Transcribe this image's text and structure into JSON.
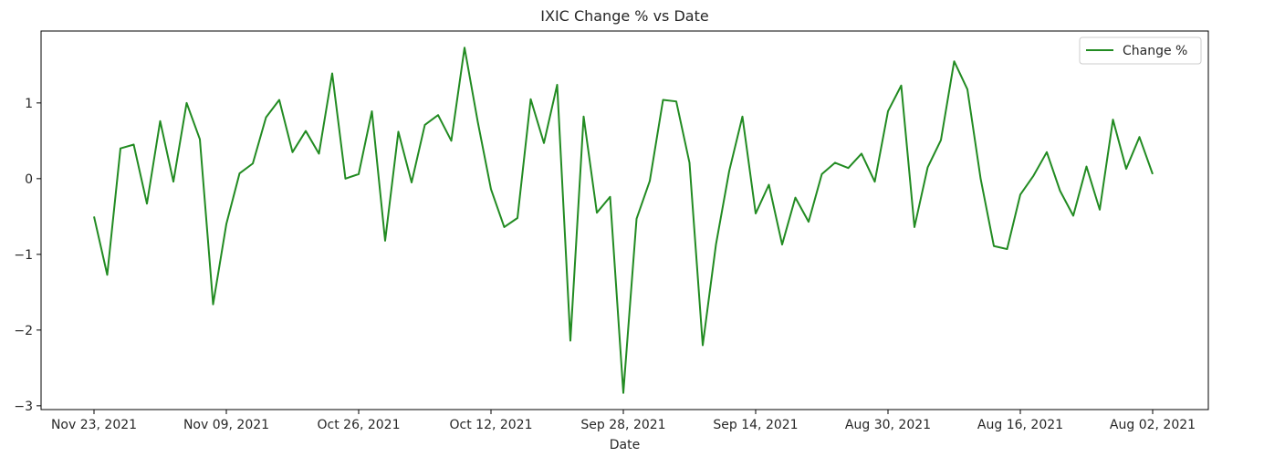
{
  "chart_data": {
    "type": "line",
    "title": "IXIC Change % vs Date",
    "xlabel": "Date",
    "ylabel": "",
    "x_order": "descending-date",
    "xtick_labels": [
      "Nov 23, 2021",
      "Nov 09, 2021",
      "Oct 26, 2021",
      "Oct 12, 2021",
      "Sep 28, 2021",
      "Sep 14, 2021",
      "Aug 30, 2021",
      "Aug 16, 2021",
      "Aug 02, 2021"
    ],
    "yticks": [
      1,
      0,
      -1,
      -2,
      -3
    ],
    "ytick_labels": [
      "1",
      "0",
      "−1",
      "−2",
      "−3"
    ],
    "ylim": [
      -3.05,
      1.95
    ],
    "grid": false,
    "legend_position": "top-right",
    "series": [
      {
        "name": "Change %",
        "color": "#228B22",
        "values": [
          -0.5,
          -1.27,
          0.4,
          0.45,
          -0.33,
          0.76,
          -0.04,
          1.0,
          0.52,
          -1.66,
          -0.6,
          0.07,
          0.2,
          0.81,
          1.04,
          0.35,
          0.63,
          0.33,
          1.39,
          0.0,
          0.06,
          0.89,
          -0.82,
          0.62,
          -0.05,
          0.71,
          0.84,
          0.5,
          1.73,
          0.75,
          -0.14,
          -0.64,
          -0.52,
          1.05,
          0.47,
          1.24,
          -2.14,
          0.82,
          -0.45,
          -0.24,
          -2.83,
          -0.53,
          -0.03,
          1.04,
          1.02,
          0.21,
          -2.2,
          -0.87,
          0.1,
          0.82,
          -0.46,
          -0.08,
          -0.87,
          -0.25,
          -0.57,
          0.06,
          0.21,
          0.14,
          0.33,
          -0.04,
          0.89,
          1.23,
          -0.64,
          0.15,
          0.51,
          1.55,
          1.18,
          0.0,
          -0.89,
          -0.93,
          -0.21,
          0.04,
          0.35,
          -0.16,
          -0.49,
          0.16,
          -0.41,
          0.78,
          0.13,
          0.55,
          0.06
        ]
      }
    ]
  }
}
